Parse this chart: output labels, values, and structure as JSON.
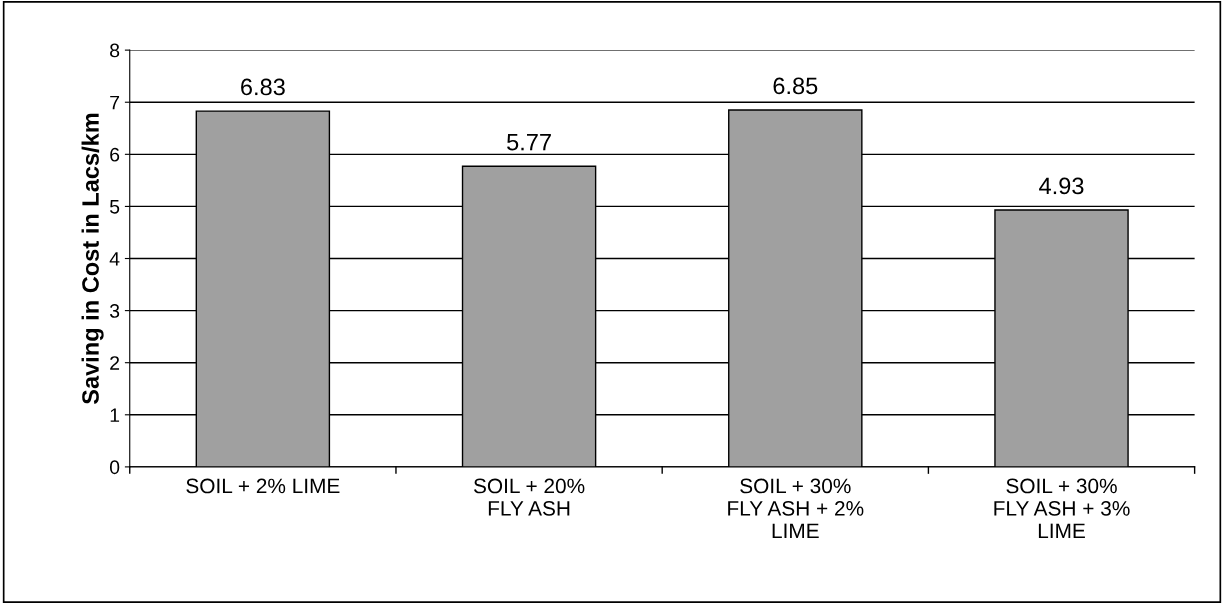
{
  "chart_data": {
    "type": "bar",
    "ylabel": "Saving in Cost in Lacs/km",
    "categories": [
      "SOIL + 2% LIME",
      "SOIL + 20%\nFLY ASH",
      "SOIL + 30%\nFLY ASH + 2%\nLIME",
      "SOIL + 30%\nFLY ASH + 3%\nLIME"
    ],
    "values": [
      6.83,
      5.77,
      6.85,
      4.93
    ],
    "color": "#a0a0a0",
    "data_labels": true,
    "ylim": [
      0,
      8
    ],
    "yticks": [
      0,
      1,
      2,
      3,
      4,
      5,
      6,
      7,
      8
    ],
    "grid": "y",
    "legend": false
  }
}
